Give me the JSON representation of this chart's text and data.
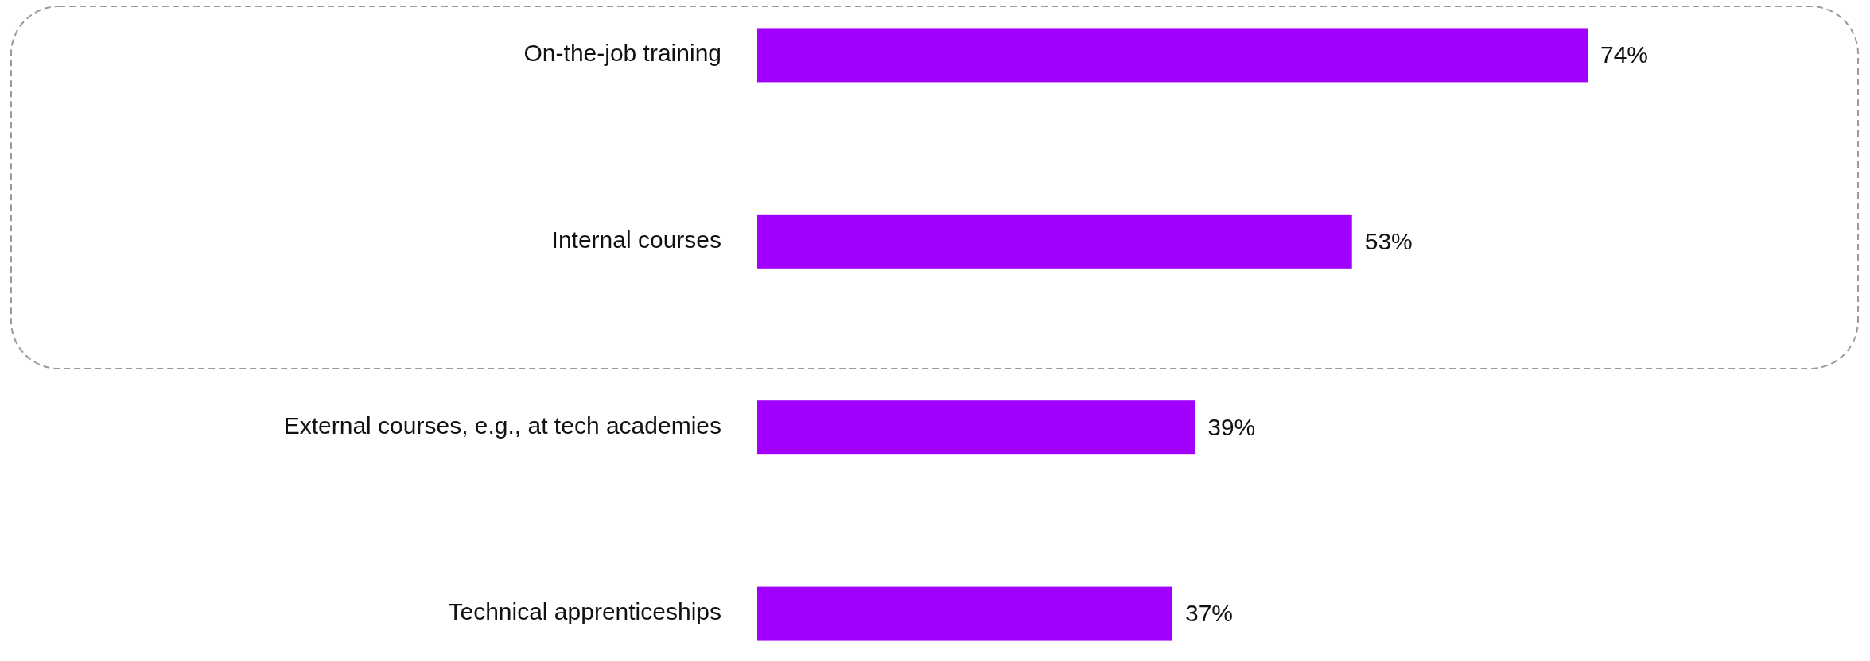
{
  "chart_data": {
    "type": "bar",
    "orientation": "horizontal",
    "categories": [
      "On-the-job training",
      "Internal courses",
      "External courses, e.g., at tech academies",
      "Technical apprenticeships"
    ],
    "values": [
      74,
      53,
      39,
      37
    ],
    "value_labels": [
      "74%",
      "53%",
      "39%",
      "37%"
    ],
    "color": "#a100ff"
  }
}
